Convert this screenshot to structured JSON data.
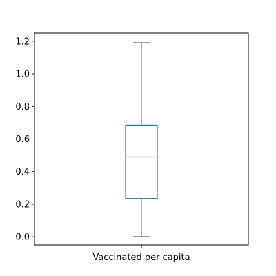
{
  "chart_data": {
    "type": "box",
    "title": "",
    "xlabel": "",
    "ylabel": "",
    "categories": [
      "Vaccinated per capita"
    ],
    "boxes": [
      {
        "category": "Vaccinated per capita",
        "whisker_low": 0.0,
        "q1": 0.235,
        "median": 0.49,
        "q3": 0.685,
        "whisker_high": 1.19
      }
    ],
    "ylim": [
      -0.05,
      1.25
    ],
    "yticks": [
      0.0,
      0.2,
      0.4,
      0.6,
      0.8,
      1.0,
      1.2
    ],
    "ytick_labels": [
      "0.0",
      "0.2",
      "0.4",
      "0.6",
      "0.8",
      "1.0",
      "1.2"
    ],
    "grid": false,
    "colors": {
      "box": "#1f77b4",
      "median": "#2ca02c",
      "caps": "#000000",
      "axes": "#000000"
    }
  }
}
